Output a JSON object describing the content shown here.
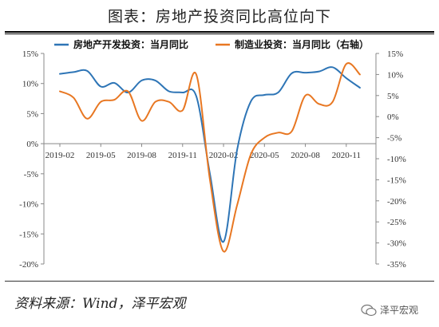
{
  "title": "图表：房地产投资同比高位向下",
  "source": "资料来源：Wind，泽平宏观",
  "watermark": "泽平宏观",
  "colors": {
    "left_series": "#2E75B6",
    "right_series": "#E87722",
    "axis": "#888888"
  },
  "chart_data": {
    "type": "line",
    "x_ticks": [
      "2019-02",
      "2019-05",
      "2019-08",
      "2019-11",
      "2020-02",
      "2020-05",
      "2020-08",
      "2020-11"
    ],
    "ylim_left": [
      -20,
      15
    ],
    "yticks_left": [
      "15%",
      "10%",
      "5%",
      "0%",
      "-5%",
      "-10%",
      "-15%",
      "-20%"
    ],
    "ylim_right": [
      -35,
      15
    ],
    "yticks_right": [
      "15%",
      "10%",
      "5%",
      "0%",
      "-5%",
      "-10%",
      "-15%",
      "-20%",
      "-25%",
      "-30%",
      "-35%"
    ],
    "legend_position": "top",
    "grid": false,
    "series": [
      {
        "name": "房地产开发投资：当月同比",
        "axis": "left",
        "color": "#2E75B6",
        "points": [
          [
            "2019-02",
            11.6
          ],
          [
            "2019-03",
            11.9
          ],
          [
            "2019-04",
            12.1
          ],
          [
            "2019-05",
            9.5
          ],
          [
            "2019-06",
            10.1
          ],
          [
            "2019-07",
            8.5
          ],
          [
            "2019-08",
            10.5
          ],
          [
            "2019-09",
            10.5
          ],
          [
            "2019-10",
            8.7
          ],
          [
            "2019-11",
            8.5
          ],
          [
            "2019-12",
            7.9
          ],
          [
            "2020-01",
            -5
          ],
          [
            "2020-02",
            -16.3
          ],
          [
            "2020-03",
            -1.0
          ],
          [
            "2020-04",
            7.0
          ],
          [
            "2020-05",
            8.1
          ],
          [
            "2020-06",
            8.5
          ],
          [
            "2020-07",
            11.7
          ],
          [
            "2020-08",
            11.8
          ],
          [
            "2020-09",
            12.0
          ],
          [
            "2020-10",
            12.7
          ],
          [
            "2020-11",
            10.9
          ],
          [
            "2020-12",
            9.3
          ]
        ]
      },
      {
        "name": "制造业投资：当月同比（右轴）",
        "axis": "right",
        "color": "#E87722",
        "points": [
          [
            "2019-02",
            6.0
          ],
          [
            "2019-03",
            4.5
          ],
          [
            "2019-04",
            -0.5
          ],
          [
            "2019-05",
            3.5
          ],
          [
            "2019-06",
            4.0
          ],
          [
            "2019-07",
            6.0
          ],
          [
            "2019-08",
            -1.0
          ],
          [
            "2019-09",
            3.5
          ],
          [
            "2019-10",
            3.5
          ],
          [
            "2019-11",
            1.5
          ],
          [
            "2019-12",
            10.0
          ],
          [
            "2020-01",
            -15.0
          ],
          [
            "2020-02",
            -32.0
          ],
          [
            "2020-03",
            -21.0
          ],
          [
            "2020-04",
            -9.0
          ],
          [
            "2020-05",
            -5.0
          ],
          [
            "2020-06",
            -3.8
          ],
          [
            "2020-07",
            -3.5
          ],
          [
            "2020-08",
            5.0
          ],
          [
            "2020-09",
            3.0
          ],
          [
            "2020-10",
            3.5
          ],
          [
            "2020-11",
            12.5
          ],
          [
            "2020-12",
            10.0
          ]
        ]
      }
    ]
  }
}
